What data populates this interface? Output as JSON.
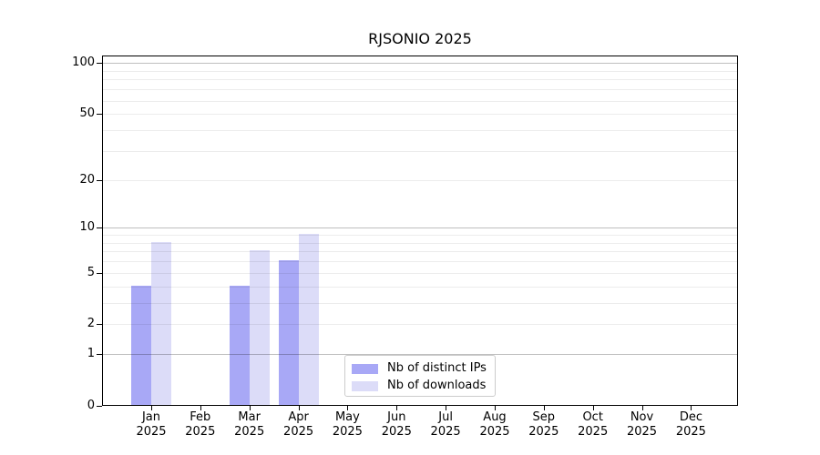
{
  "chart_data": {
    "type": "bar",
    "title": "RJSONIO 2025",
    "categories": [
      "Jan",
      "Feb",
      "Mar",
      "Apr",
      "May",
      "Jun",
      "Jul",
      "Aug",
      "Sep",
      "Oct",
      "Nov",
      "Dec"
    ],
    "category_year_label": "2025",
    "series": [
      {
        "name": "Nb of distinct IPs",
        "color": "#a8a8f6",
        "values": [
          4,
          0,
          4,
          6,
          0,
          0,
          0,
          0,
          0,
          0,
          0,
          0
        ]
      },
      {
        "name": "Nb of downloads",
        "color": "#dcdcf8",
        "values": [
          8,
          0,
          7,
          9,
          0,
          0,
          0,
          0,
          0,
          0,
          0,
          0
        ]
      }
    ],
    "yticks": [
      0,
      1,
      2,
      5,
      10,
      20,
      50,
      100
    ],
    "ylim": [
      0,
      100
    ],
    "yscale": "log1p",
    "grid": {
      "major": [
        1,
        10,
        100
      ],
      "minor": [
        2,
        3,
        4,
        5,
        6,
        7,
        8,
        9,
        20,
        30,
        40,
        50,
        60,
        70,
        80,
        90
      ]
    },
    "legend_position": "inside-bottom-center",
    "colors": {
      "grid_major": "rgba(0,0,0,0.25)",
      "grid_minor": "rgba(0,0,0,0.075)",
      "spine": "#000000",
      "legend_border": "#cccccc",
      "text": "#000000"
    }
  }
}
